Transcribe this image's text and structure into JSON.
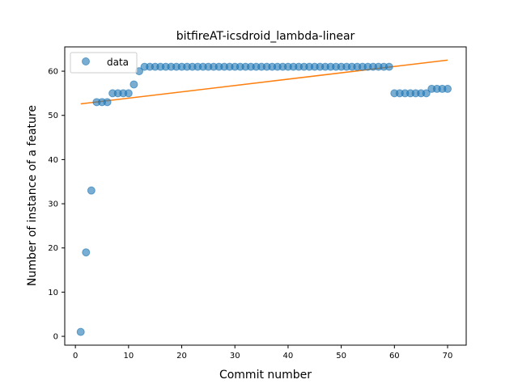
{
  "chart_data": {
    "type": "scatter",
    "title": "bitfireAT-icsdroid_lambda-linear",
    "xlabel": "Commit number",
    "ylabel": "Number of instance of a feature",
    "xlim": [
      -2,
      73.5
    ],
    "ylim": [
      -2,
      65.5
    ],
    "xticks": [
      0,
      10,
      20,
      30,
      40,
      50,
      60,
      70
    ],
    "yticks": [
      0,
      10,
      20,
      30,
      40,
      50,
      60
    ],
    "legend": {
      "placement": "top-left",
      "entries": [
        "data"
      ]
    },
    "grid": false,
    "colors": {
      "scatter": "#1f77b4",
      "fit": "#ff7f0e"
    },
    "series": [
      {
        "name": "data",
        "kind": "scatter",
        "x": [
          1,
          2,
          3,
          4,
          5,
          6,
          7,
          8,
          9,
          10,
          11,
          12,
          13,
          14,
          15,
          16,
          17,
          18,
          19,
          20,
          21,
          22,
          23,
          24,
          25,
          26,
          27,
          28,
          29,
          30,
          31,
          32,
          33,
          34,
          35,
          36,
          37,
          38,
          39,
          40,
          41,
          42,
          43,
          44,
          45,
          46,
          47,
          48,
          49,
          50,
          51,
          52,
          53,
          54,
          55,
          56,
          57,
          58,
          59,
          60,
          61,
          62,
          63,
          64,
          65,
          66,
          67,
          68,
          69,
          70
        ],
        "y": [
          1,
          19,
          33,
          53,
          53,
          53,
          55,
          55,
          55,
          55,
          57,
          60,
          61,
          61,
          61,
          61,
          61,
          61,
          61,
          61,
          61,
          61,
          61,
          61,
          61,
          61,
          61,
          61,
          61,
          61,
          61,
          61,
          61,
          61,
          61,
          61,
          61,
          61,
          61,
          61,
          61,
          61,
          61,
          61,
          61,
          61,
          61,
          61,
          61,
          61,
          61,
          61,
          61,
          61,
          61,
          61,
          61,
          61,
          61,
          55,
          55,
          55,
          55,
          55,
          55,
          55,
          56,
          56,
          56,
          56
        ]
      },
      {
        "name": "",
        "kind": "line",
        "x": [
          1,
          70
        ],
        "y": [
          52.6,
          62.5
        ]
      }
    ]
  }
}
